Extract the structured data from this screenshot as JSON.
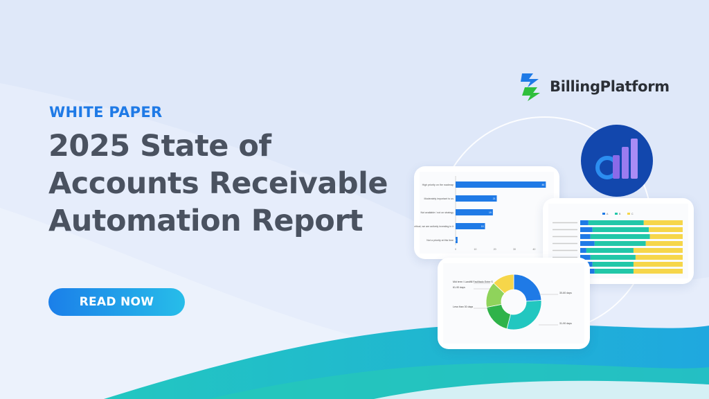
{
  "hero": {
    "eyebrow": "WHITE PAPER",
    "title_lines": [
      "2025 State of",
      "Accounts Receivable",
      "Automation Report"
    ],
    "cta_label": "READ NOW"
  },
  "brand": {
    "name": "BillingPlatform",
    "logo_colors": [
      "#1f7ae6",
      "#2fbf3c"
    ]
  },
  "colors": {
    "background": "#dfe8f9",
    "accent_blue": "#1f7ae6",
    "title_gray": "#4a5260",
    "teal": "#22c7c0",
    "badge": "#1247ad",
    "bar_purple": "#8a6ae8"
  },
  "decor": {
    "badge_icon": "analytics-bars-icon"
  },
  "cards": {
    "bar_chart": {
      "labels": [
        "High priority on the roadmap",
        "Moderately important to us",
        "Not available / not on strategy",
        "It's critical, we are actively investing in it",
        "Not a priority at this time"
      ],
      "values": [
        46,
        21,
        19,
        15,
        1
      ],
      "ticks": [
        "0",
        "10",
        "20",
        "30",
        "40"
      ],
      "color": "#1f7ae6"
    },
    "stacked_chart": {
      "legend": [
        "A",
        "B",
        "C"
      ],
      "colors": [
        "#1f7ae6",
        "#22c7a8",
        "#f6d64a"
      ],
      "rows": [
        [
          8,
          54,
          38
        ],
        [
          12,
          55,
          33
        ],
        [
          10,
          58,
          32
        ],
        [
          14,
          50,
          36
        ],
        [
          6,
          46,
          48
        ],
        [
          10,
          44,
          46
        ],
        [
          12,
          40,
          48
        ],
        [
          14,
          38,
          48
        ]
      ]
    },
    "donut_chart": {
      "labels_left": [
        "Mid term / Landfill Facilitado Entre S",
        "61-90 days",
        "Less than 30 days"
      ],
      "labels_right": [
        "30-60 days",
        "31-90 days"
      ],
      "values": [
        24,
        30,
        18,
        15,
        13
      ],
      "colors": [
        "#1f7ae6",
        "#22c7c0",
        "#2fb34a",
        "#8fd35b",
        "#f6d64a"
      ]
    }
  }
}
